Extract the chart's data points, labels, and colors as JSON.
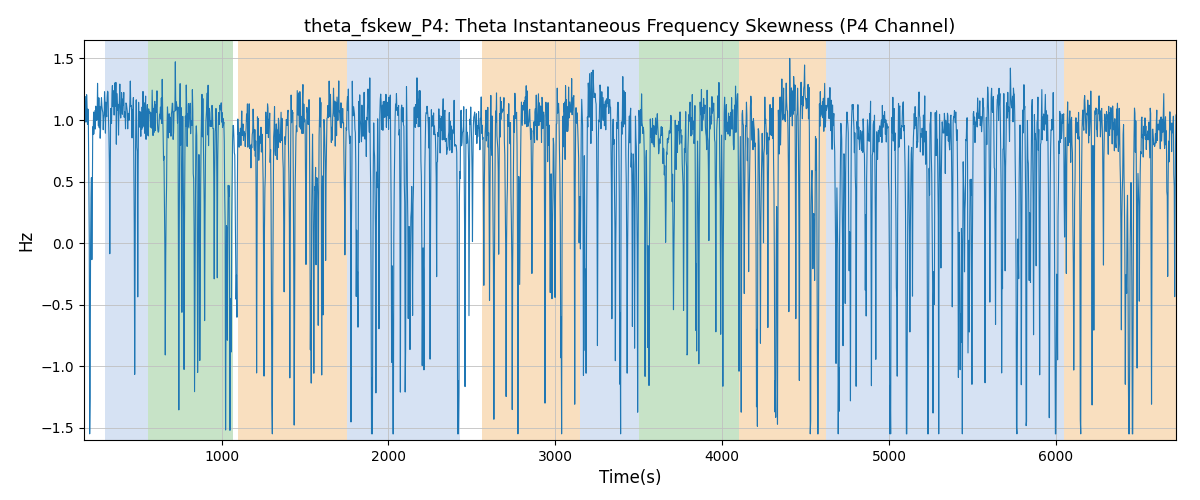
{
  "title": "theta_fskew_P4: Theta Instantaneous Frequency Skewness (P4 Channel)",
  "xlabel": "Time(s)",
  "ylabel": "Hz",
  "xlim": [
    175,
    6720
  ],
  "ylim": [
    -1.6,
    1.65
  ],
  "line_color": "#1f77b4",
  "line_width": 0.8,
  "bg_color": "#ffffff",
  "grid_color": "#c0c0c0",
  "title_fontsize": 13,
  "label_fontsize": 12,
  "tick_fontsize": 10,
  "bands": [
    {
      "start": 300,
      "end": 560,
      "color": "#aec6e8",
      "alpha": 0.5
    },
    {
      "start": 560,
      "end": 1070,
      "color": "#90c990",
      "alpha": 0.5
    },
    {
      "start": 1100,
      "end": 1750,
      "color": "#f5c080",
      "alpha": 0.5
    },
    {
      "start": 1750,
      "end": 2430,
      "color": "#aec6e8",
      "alpha": 0.5
    },
    {
      "start": 2560,
      "end": 3150,
      "color": "#f5c080",
      "alpha": 0.5
    },
    {
      "start": 3150,
      "end": 3500,
      "color": "#aec6e8",
      "alpha": 0.5
    },
    {
      "start": 3500,
      "end": 4100,
      "color": "#90c990",
      "alpha": 0.5
    },
    {
      "start": 4100,
      "end": 4620,
      "color": "#f5c080",
      "alpha": 0.5
    },
    {
      "start": 4620,
      "end": 6050,
      "color": "#aec6e8",
      "alpha": 0.5
    },
    {
      "start": 6050,
      "end": 6720,
      "color": "#f5c080",
      "alpha": 0.5
    }
  ],
  "xticks": [
    1000,
    2000,
    3000,
    4000,
    5000,
    6000
  ],
  "yticks": [
    -1.5,
    -1.0,
    -0.5,
    0.0,
    0.5,
    1.0,
    1.5
  ],
  "seed": 42,
  "n_points": 2500,
  "x_start": 175,
  "x_end": 6720
}
